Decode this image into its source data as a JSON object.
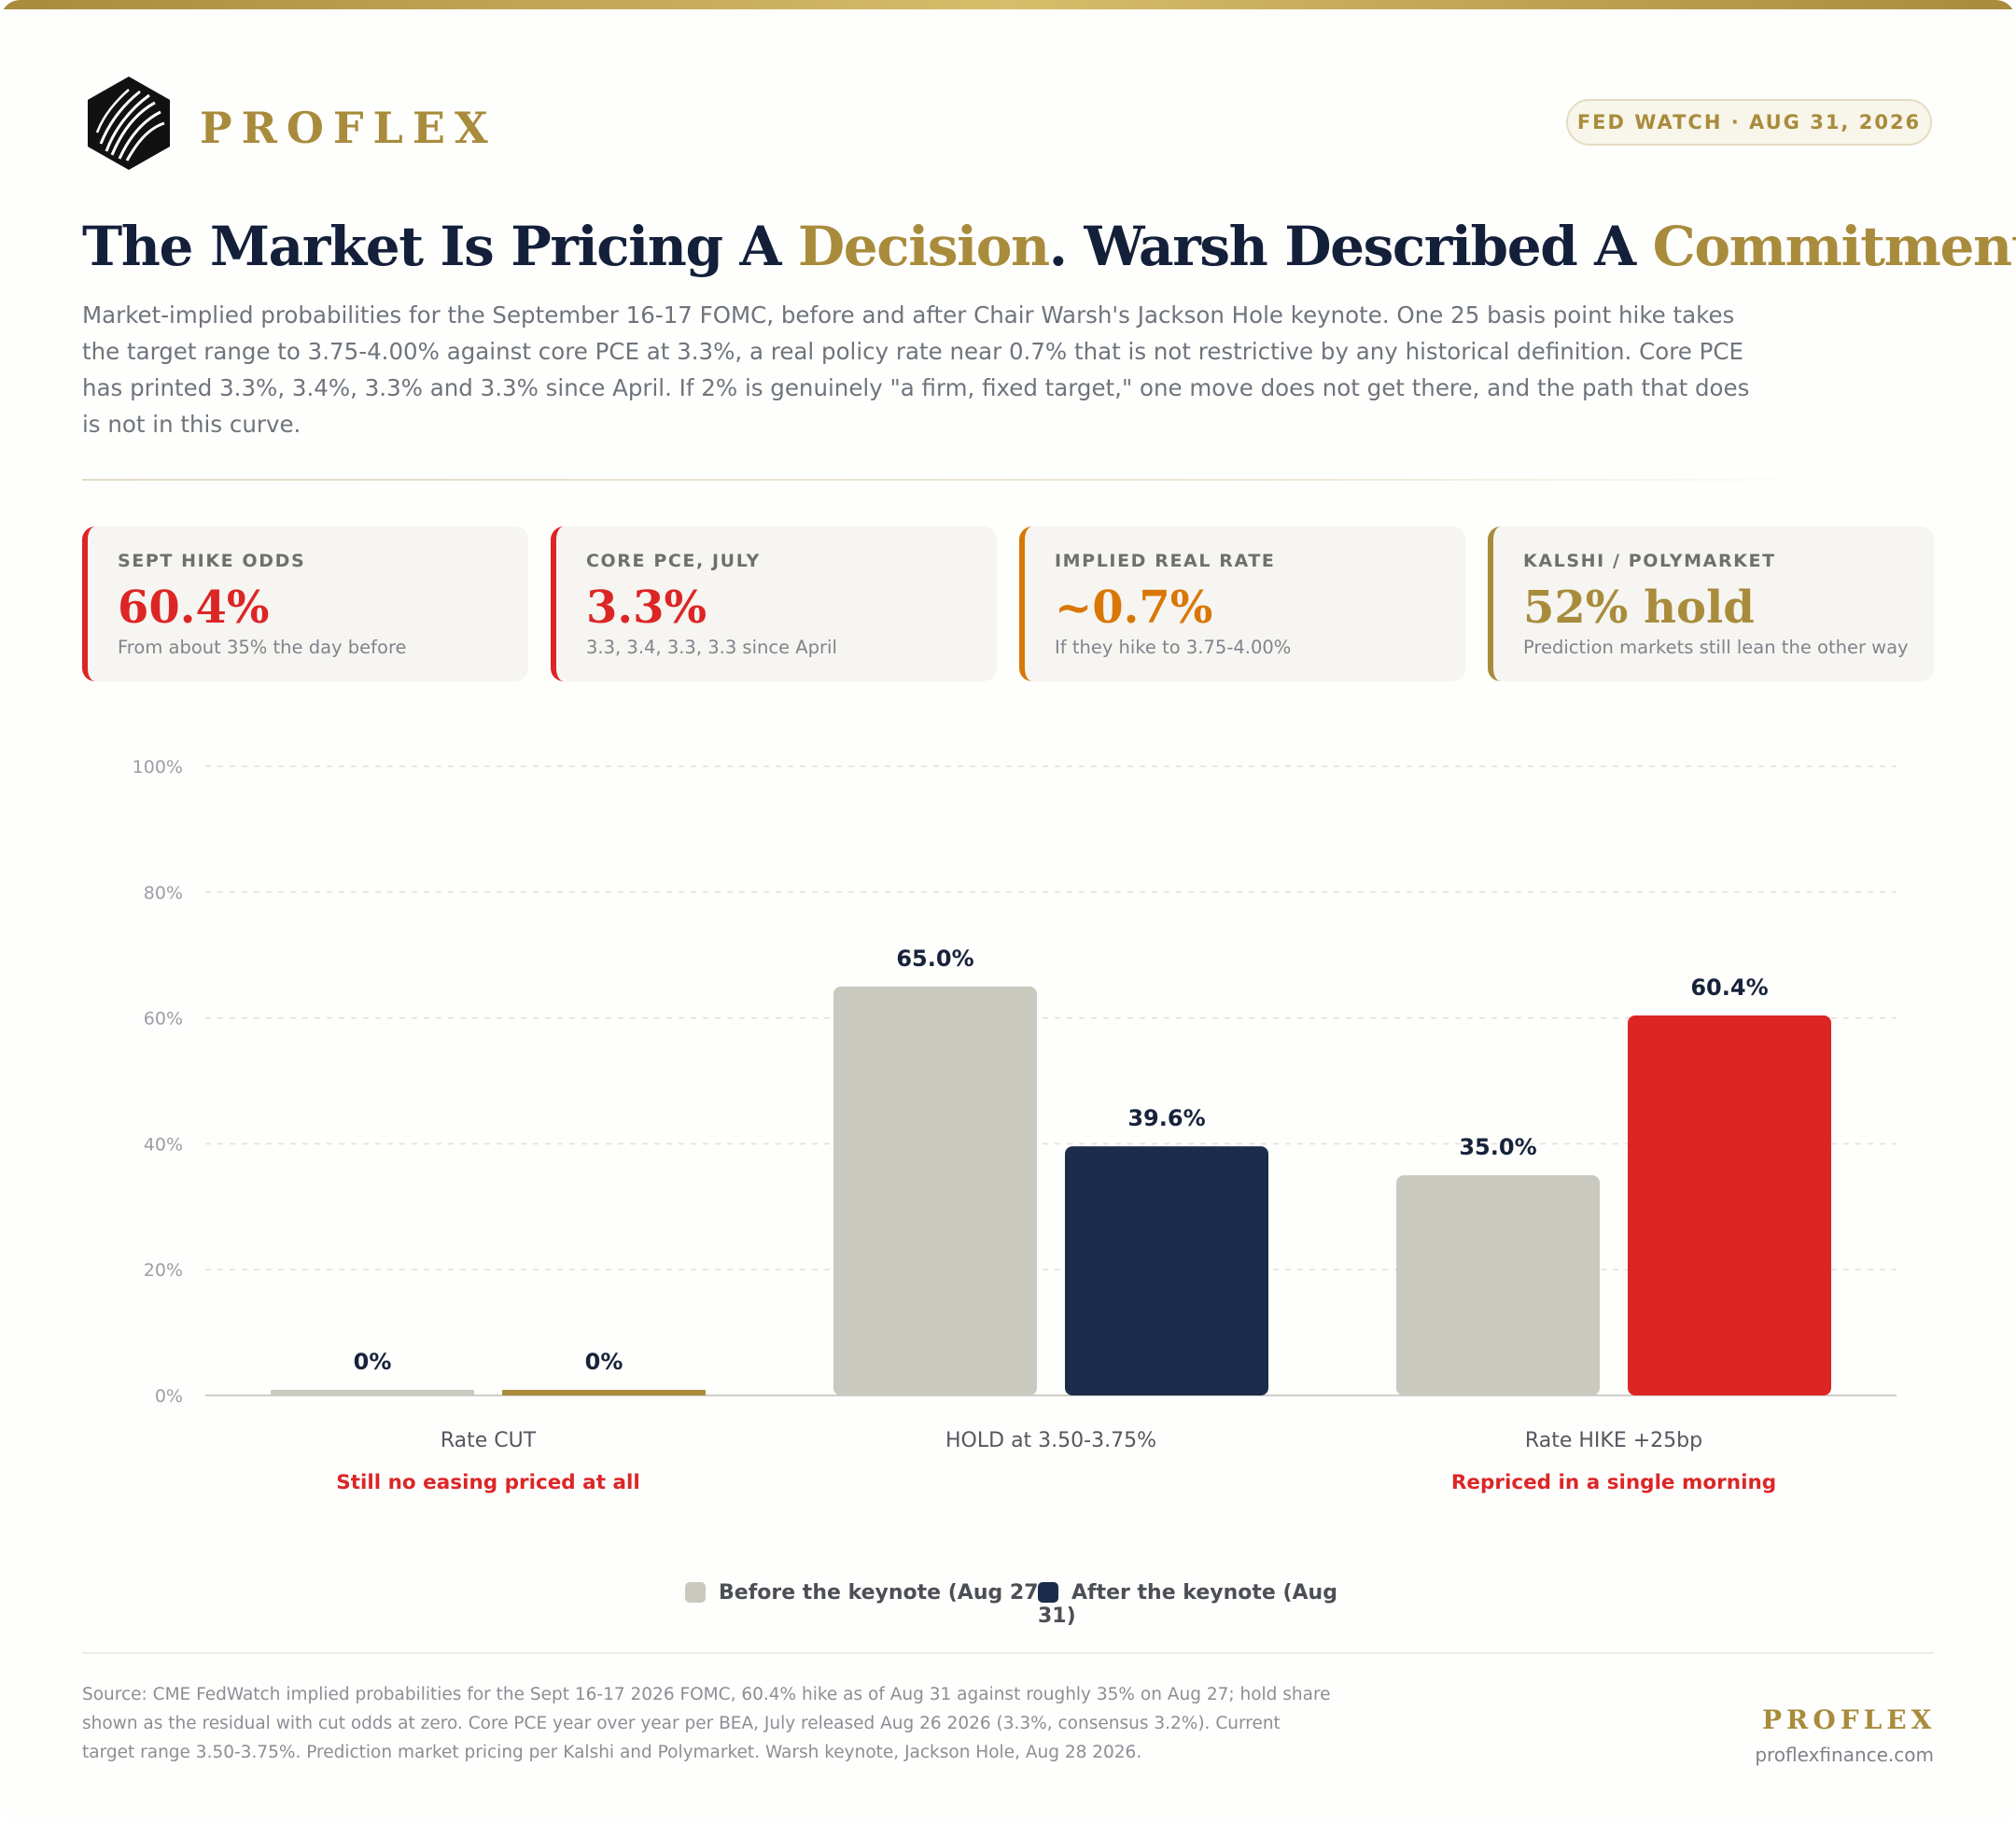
{
  "header": {
    "brand": "PROFLEX",
    "badge": "FED WATCH · AUG 31, 2026"
  },
  "headline": {
    "part1": "The Market Is Pricing A ",
    "accent1": "Decision",
    "part2": ". Warsh Described A ",
    "accent2": "Commitment",
    "part3": "."
  },
  "subtitle": "Market-implied probabilities for the September 16-17 FOMC, before and after Chair Warsh's Jackson Hole keynote. One 25 basis point hike takes the target range to 3.75-4.00% against core PCE at 3.3%, a real policy rate near 0.7% that is not restrictive by any historical definition. Core PCE has printed 3.3%, 3.4%, 3.3% and 3.3% since April. If 2% is genuinely \"a firm, fixed target,\" one move does not get there, and the path that does is not in this curve.",
  "stats": [
    {
      "label": "SEPT HIKE ODDS",
      "value": "60.4%",
      "note": "From about 35% the day before",
      "color": "#dc2626"
    },
    {
      "label": "CORE PCE, JULY",
      "value": "3.3%",
      "note": "3.3, 3.4, 3.3, 3.3 since April",
      "color": "#dc2626"
    },
    {
      "label": "IMPLIED REAL RATE",
      "value": "~0.7%",
      "note": "If they hike to 3.75-4.00%",
      "color": "#d97706"
    },
    {
      "label": "KALSHI / POLYMARKET",
      "value": "52% hold",
      "note": "Prediction markets still lean the other way",
      "color": "#a88c3c"
    }
  ],
  "chart_data": {
    "type": "bar",
    "categories": [
      "Rate CUT",
      "HOLD at 3.50-3.75%",
      "Rate HIKE +25bp"
    ],
    "annotations": [
      "Still no easing priced at all",
      "",
      "Repriced in a single morning"
    ],
    "series": [
      {
        "name": "Before the keynote (Aug 27)",
        "values": [
          0,
          65.0,
          35.0
        ],
        "labels": [
          "0%",
          "65.0%",
          "35.0%"
        ],
        "color": "#c9c9c0"
      },
      {
        "name": "After the keynote (Aug 31)",
        "values": [
          0,
          39.6,
          60.4
        ],
        "labels": [
          "0%",
          "39.6%",
          "60.4%"
        ],
        "color": "#1b2d4a"
      }
    ],
    "highlight_colors": [
      "#a88c3c",
      "#1b2d4a",
      "#dc2626"
    ],
    "yticks": [
      "0%",
      "20%",
      "40%",
      "60%",
      "80%",
      "100%"
    ],
    "ylim": [
      0,
      100
    ],
    "grid": true,
    "legend_position": "bottom"
  },
  "source": "Source: CME FedWatch implied probabilities for the Sept 16-17 2026 FOMC, 60.4% hike as of Aug 31 against roughly 35% on Aug 27; hold share shown as the residual with cut odds at zero. Core PCE year over year per BEA, July released Aug 26 2026 (3.3%, consensus 3.2%). Current target range 3.50-3.75%. Prediction market pricing per Kalshi and Polymarket. Warsh keynote, Jackson Hole, Aug 28 2026.",
  "footer": {
    "brand": "PROFLEX",
    "url": "proflexfinance.com"
  }
}
